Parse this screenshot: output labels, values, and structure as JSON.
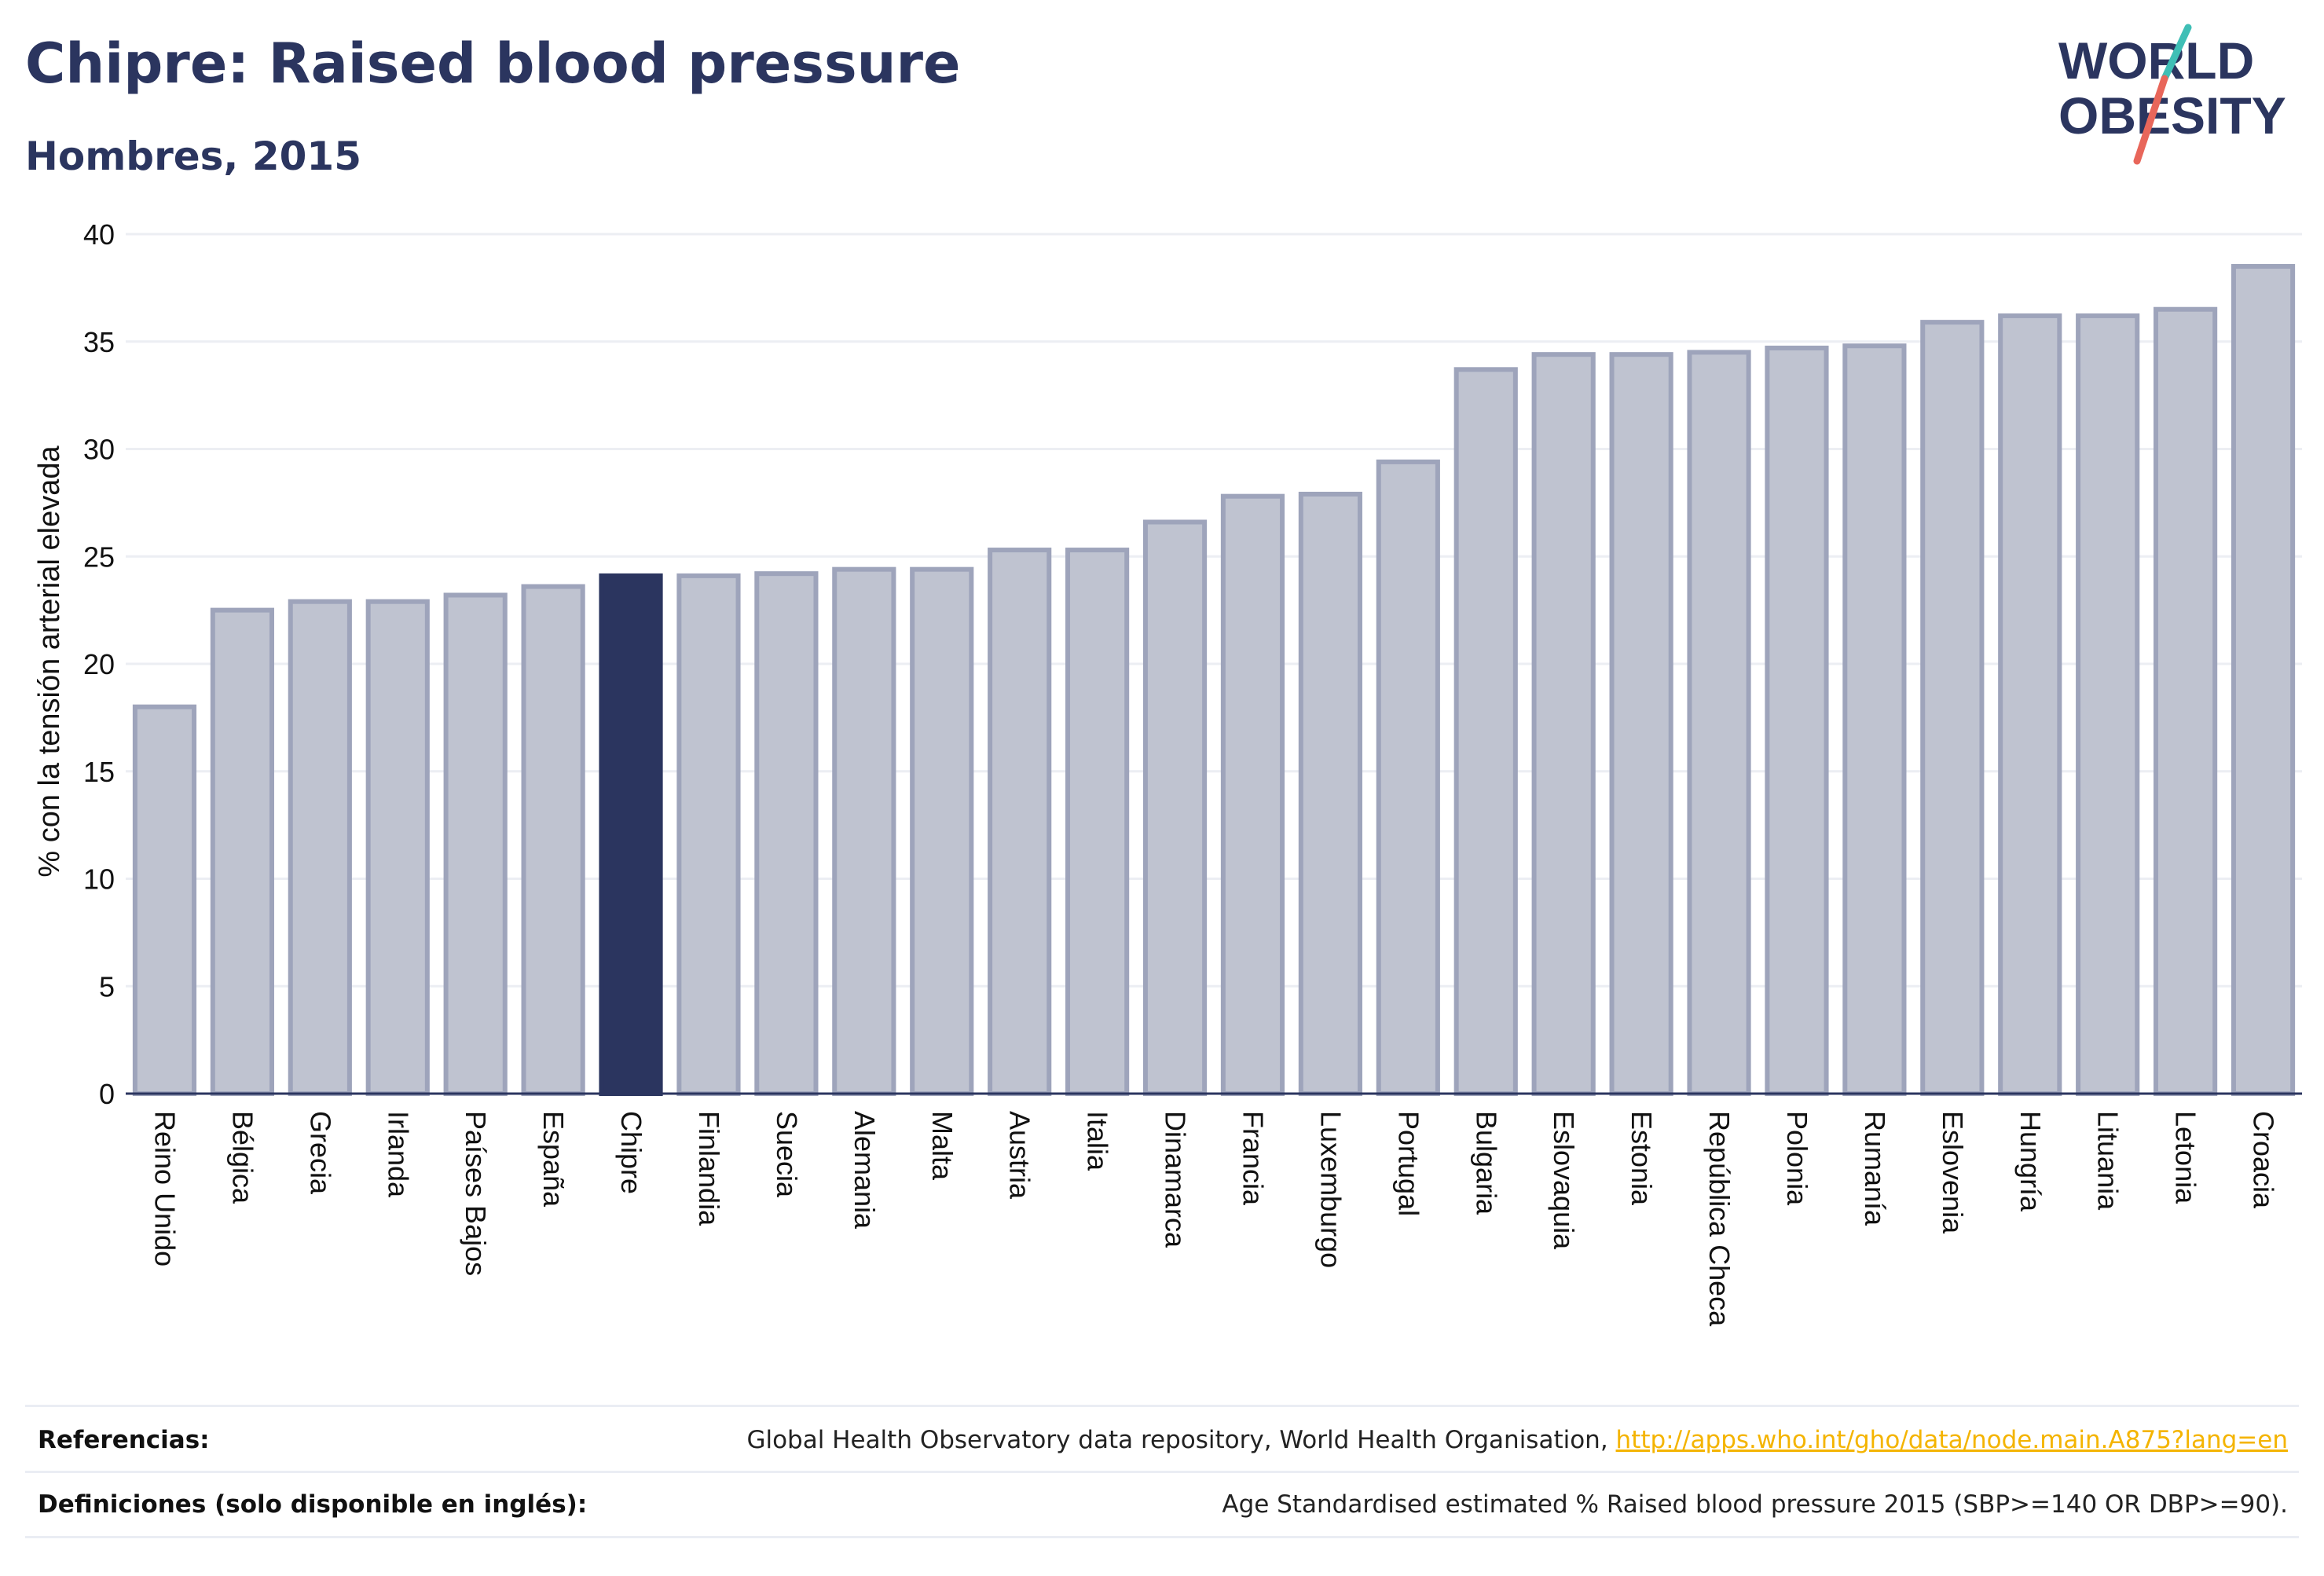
{
  "header": {
    "title": "Chipre: Raised blood pressure",
    "subtitle": "Hombres, 2015"
  },
  "logo": {
    "line1": "WORLD",
    "line2": "OBESITY",
    "colors": {
      "text": "#2b355f",
      "stroke_top": "#3fbfb6",
      "stroke_bottom": "#e8665a"
    }
  },
  "chart_data": {
    "type": "bar",
    "ylabel": "% con la tensión arterial elevada",
    "xlabel": "",
    "ylim": [
      0,
      40
    ],
    "yticks": [
      0,
      5,
      10,
      15,
      20,
      25,
      30,
      35,
      40
    ],
    "grid": true,
    "highlight": "Chipre",
    "colors": {
      "bar": "#bfc3d0",
      "bar_edge": "#9ea4bb",
      "highlight": "#2b355f",
      "grid": "#eceef3",
      "axis": "#2b355f"
    },
    "categories": [
      "Reino Unido",
      "Bélgica",
      "Grecia",
      "Irlanda",
      "Países Bajos",
      "España",
      "Chipre",
      "Finlandia",
      "Suecia",
      "Alemania",
      "Malta",
      "Austria",
      "Italia",
      "Dinamarca",
      "Francia",
      "Luxemburgo",
      "Portugal",
      "Bulgaria",
      "Eslovaquia",
      "Estonia",
      "República Checa",
      "Polonia",
      "Rumanía",
      "Eslovenia",
      "Hungría",
      "Lituania",
      "Letonia",
      "Croacia"
    ],
    "values": [
      18.0,
      22.5,
      22.9,
      22.9,
      23.2,
      23.6,
      24.1,
      24.1,
      24.2,
      24.4,
      24.4,
      25.3,
      25.3,
      26.6,
      27.8,
      27.9,
      29.4,
      33.7,
      34.4,
      34.4,
      34.5,
      34.7,
      34.8,
      35.9,
      36.2,
      36.2,
      36.5,
      38.5
    ]
  },
  "footer": {
    "references_label": "Referencias:",
    "references_text": "Global Health Observatory data repository, World Health Organisation, ",
    "references_link": "http://apps.who.int/gho/data/node.main.A875?lang=en",
    "definitions_label": "Definiciones (solo disponible en inglés):",
    "definitions_text": "Age Standardised estimated % Raised blood pressure 2015 (SBP>=140 OR DBP>=90)."
  }
}
